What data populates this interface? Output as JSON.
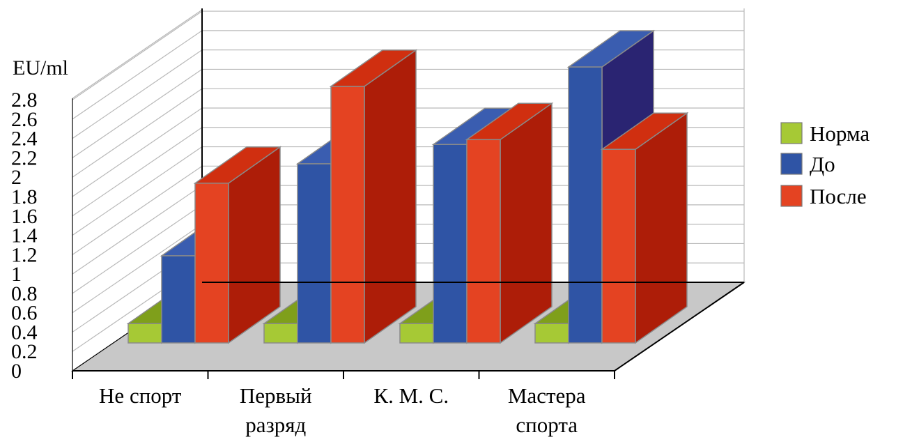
{
  "chart_data": {
    "type": "bar",
    "ylabel": "EU/ml",
    "ylim": [
      0,
      2.8
    ],
    "yticks": [
      "0",
      "0.2",
      "0.4",
      "0.6",
      "0.8",
      "1",
      "1.2",
      "1.4",
      "1.6",
      "1.8",
      "2",
      "2.2",
      "2.4",
      "2.6",
      "2.8"
    ],
    "categories": [
      [
        "Не спорт"
      ],
      [
        "Первый",
        "разряд"
      ],
      [
        "К. М. С."
      ],
      [
        "Мастера",
        "спорта"
      ]
    ],
    "series": [
      {
        "name": "Норма",
        "values": [
          0.2,
          0.2,
          0.2,
          0.2
        ]
      },
      {
        "name": "До",
        "values": [
          0.9,
          1.85,
          2.05,
          2.85
        ]
      },
      {
        "name": "После",
        "values": [
          1.65,
          2.65,
          2.1,
          2.0
        ]
      }
    ],
    "grid": true,
    "legend_position": "right",
    "colors": {
      "Норма": {
        "front": "#a6c935",
        "top": "#7f9f1b",
        "side": "#6a8a12"
      },
      "До": {
        "front": "#2f54a5",
        "top": "#3a5db0",
        "side": "#2a2472"
      },
      "После": {
        "front": "#e44322",
        "top": "#d02f10",
        "side": "#ad1d08"
      },
      "floor": "#c8c8c8",
      "wall": "#ffffff",
      "grid": "#b9b9b9"
    }
  }
}
